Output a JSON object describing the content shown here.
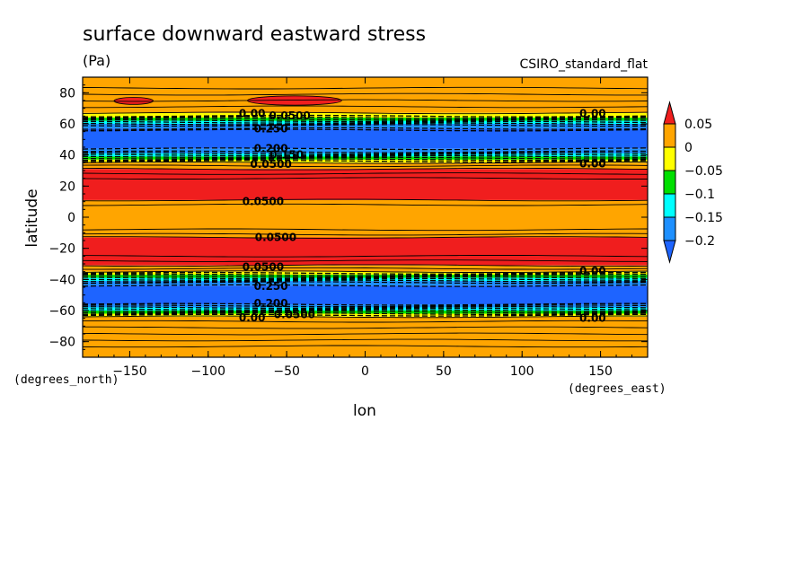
{
  "chart_data": {
    "type": "heatmap",
    "title": "surface downward eastward stress",
    "subtitle": "(Pa)",
    "model": "CSIRO_standard_flat",
    "xlabel": "lon",
    "ylabel": "latitude",
    "x_units": "(degrees_east)",
    "y_units": "(degrees_north)",
    "xlim": [
      -180,
      180
    ],
    "ylim": [
      -90,
      90
    ],
    "x_ticks": [
      -150,
      -100,
      -50,
      0,
      50,
      100,
      150
    ],
    "y_ticks": [
      80,
      60,
      40,
      20,
      0,
      -20,
      -40,
      -60,
      -80
    ],
    "x_tick_labels": [
      "−150",
      "−100",
      "−50",
      "0",
      "50",
      "100",
      "150"
    ],
    "y_tick_labels": [
      "80",
      "60",
      "40",
      "20",
      "0",
      "−20",
      "−40",
      "−60",
      "−80"
    ],
    "colorbar": {
      "levels": [
        0.05,
        0,
        -0.05,
        -0.1,
        -0.15,
        -0.2
      ],
      "labels": [
        "0.05",
        "0",
        "−0.05",
        "−0.1",
        "−0.15",
        "−0.2"
      ],
      "colors": [
        "#f01e1e",
        "#ffa500",
        "#ffff00",
        "#00e000",
        "#00ffff",
        "#1e90ff",
        "#1e64ff"
      ]
    },
    "bands": [
      {
        "lat": [
          79,
          90
        ],
        "color": "#ffa500"
      },
      {
        "lat": [
          67,
          79
        ],
        "color": "#ffa500"
      },
      {
        "lat": [
          64,
          67
        ],
        "color": "#ffff00"
      },
      {
        "lat": [
          62,
          64
        ],
        "color": "#00e000"
      },
      {
        "lat": [
          60,
          62
        ],
        "color": "#00ffff"
      },
      {
        "lat": [
          57,
          60
        ],
        "color": "#1e90ff"
      },
      {
        "lat": [
          44,
          57
        ],
        "color": "#1e64ff"
      },
      {
        "lat": [
          41,
          44
        ],
        "color": "#1e90ff"
      },
      {
        "lat": [
          39,
          41
        ],
        "color": "#00ffff"
      },
      {
        "lat": [
          37,
          39
        ],
        "color": "#00e000"
      },
      {
        "lat": [
          35,
          37
        ],
        "color": "#ffff00"
      },
      {
        "lat": [
          31,
          35
        ],
        "color": "#ffa500"
      },
      {
        "lat": [
          11,
          31
        ],
        "color": "#f01e1e"
      },
      {
        "lat": [
          -13,
          11
        ],
        "color": "#ffa500"
      },
      {
        "lat": [
          -31,
          -13
        ],
        "color": "#f01e1e"
      },
      {
        "lat": [
          -35,
          -31
        ],
        "color": "#ffa500"
      },
      {
        "lat": [
          -37,
          -35
        ],
        "color": "#ffff00"
      },
      {
        "lat": [
          -39,
          -37
        ],
        "color": "#00e000"
      },
      {
        "lat": [
          -41,
          -39
        ],
        "color": "#00ffff"
      },
      {
        "lat": [
          -44,
          -41
        ],
        "color": "#1e90ff"
      },
      {
        "lat": [
          -56,
          -44
        ],
        "color": "#1e64ff"
      },
      {
        "lat": [
          -58,
          -56
        ],
        "color": "#1e90ff"
      },
      {
        "lat": [
          -60,
          -58
        ],
        "color": "#00ffff"
      },
      {
        "lat": [
          -62,
          -60
        ],
        "color": "#00e000"
      },
      {
        "lat": [
          -64,
          -62
        ],
        "color": "#ffff00"
      },
      {
        "lat": [
          -90,
          -64
        ],
        "color": "#ffa500"
      }
    ],
    "blobs": [
      {
        "lon": [
          -160,
          -135
        ],
        "lat": [
          72.5,
          77
        ],
        "color": "#f01e1e"
      },
      {
        "lon": [
          -75,
          -15
        ],
        "lat": [
          72,
          78
        ],
        "color": "#f01e1e"
      }
    ],
    "contour_lines": {
      "solid": [
        83,
        79,
        75,
        71,
        67,
        35,
        33,
        31,
        28,
        25,
        11,
        8,
        -8,
        -11,
        -13,
        -25,
        -28,
        -31,
        -33,
        -35,
        -64,
        -67,
        -71,
        -75,
        -79,
        -83
      ],
      "dashed": [
        65,
        64,
        63,
        62,
        61,
        60,
        59,
        57,
        56,
        44,
        42,
        41,
        40,
        39,
        38,
        37,
        36,
        -36,
        -37,
        -38,
        -39,
        -40,
        -41,
        -42,
        -44,
        -56,
        -57,
        -58,
        -59,
        -60,
        -61,
        -62,
        -63
      ]
    },
    "contour_labels": [
      {
        "text": "0.00",
        "lon": -72,
        "lat": 66.5
      },
      {
        "text": "0.0500",
        "lon": -48,
        "lat": 65.3
      },
      {
        "text": "0.250",
        "lon": -60,
        "lat": 56.8
      },
      {
        "text": "0.200",
        "lon": -60,
        "lat": 44.2
      },
      {
        "text": "0.150",
        "lon": -50,
        "lat": 40
      },
      {
        "text": "0.0500",
        "lon": -60,
        "lat": 34
      },
      {
        "text": "0.0500",
        "lon": -65,
        "lat": 10
      },
      {
        "text": "0.0500",
        "lon": -57,
        "lat": -13
      },
      {
        "text": "0.0500",
        "lon": -65,
        "lat": -32
      },
      {
        "text": "0.250",
        "lon": -60,
        "lat": -44.5
      },
      {
        "text": "0.200",
        "lon": -60,
        "lat": -55.5
      },
      {
        "text": "0.0500",
        "lon": -45,
        "lat": -62.5
      },
      {
        "text": "0.00",
        "lon": -72,
        "lat": -64.5
      },
      {
        "text": "0.00",
        "lon": 145,
        "lat": 66.5
      },
      {
        "text": "0.00",
        "lon": 145,
        "lat": 34.3
      },
      {
        "text": "0.00",
        "lon": 145,
        "lat": -34.5
      },
      {
        "text": "0.00",
        "lon": 145,
        "lat": -64.8
      }
    ]
  }
}
